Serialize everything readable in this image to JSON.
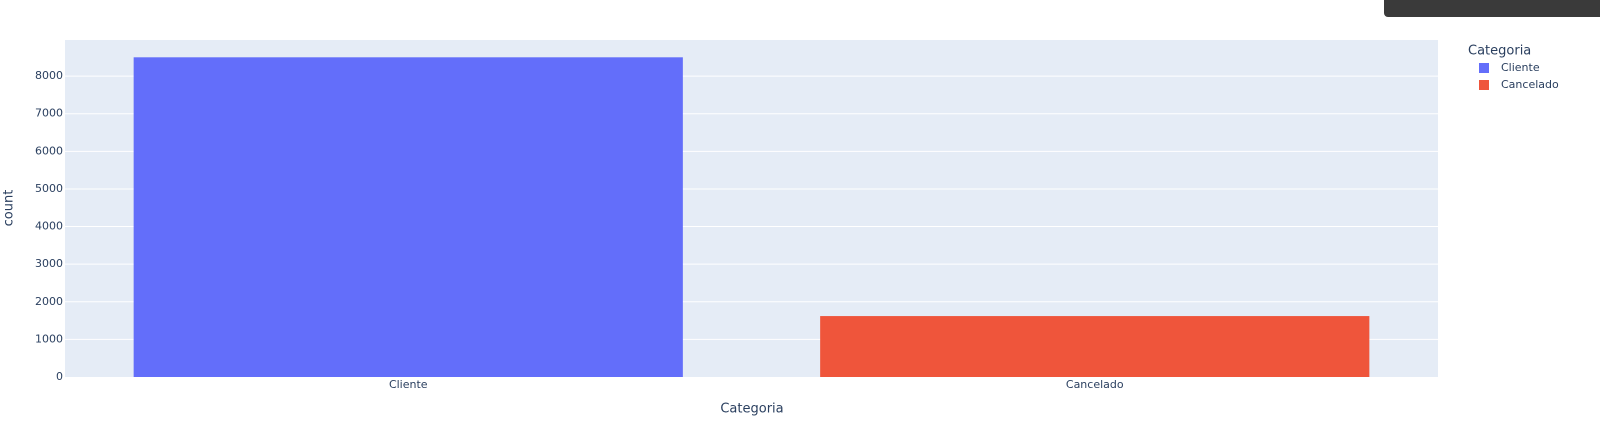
{
  "chart_data": {
    "type": "bar",
    "categories": [
      "Cliente",
      "Cancelado"
    ],
    "series": [
      {
        "name": "Cliente",
        "color": "#636efa",
        "values": [
          8500,
          null
        ]
      },
      {
        "name": "Cancelado",
        "color": "#ef553b",
        "values": [
          null,
          1620
        ]
      }
    ],
    "xlabel": "Categoria",
    "ylabel": "count",
    "legend_title": "Categoria",
    "ylim": [
      0,
      8960
    ],
    "yticks": [
      0,
      1000,
      2000,
      3000,
      4000,
      5000,
      6000,
      7000,
      8000
    ],
    "grid": true,
    "legend": "right"
  }
}
